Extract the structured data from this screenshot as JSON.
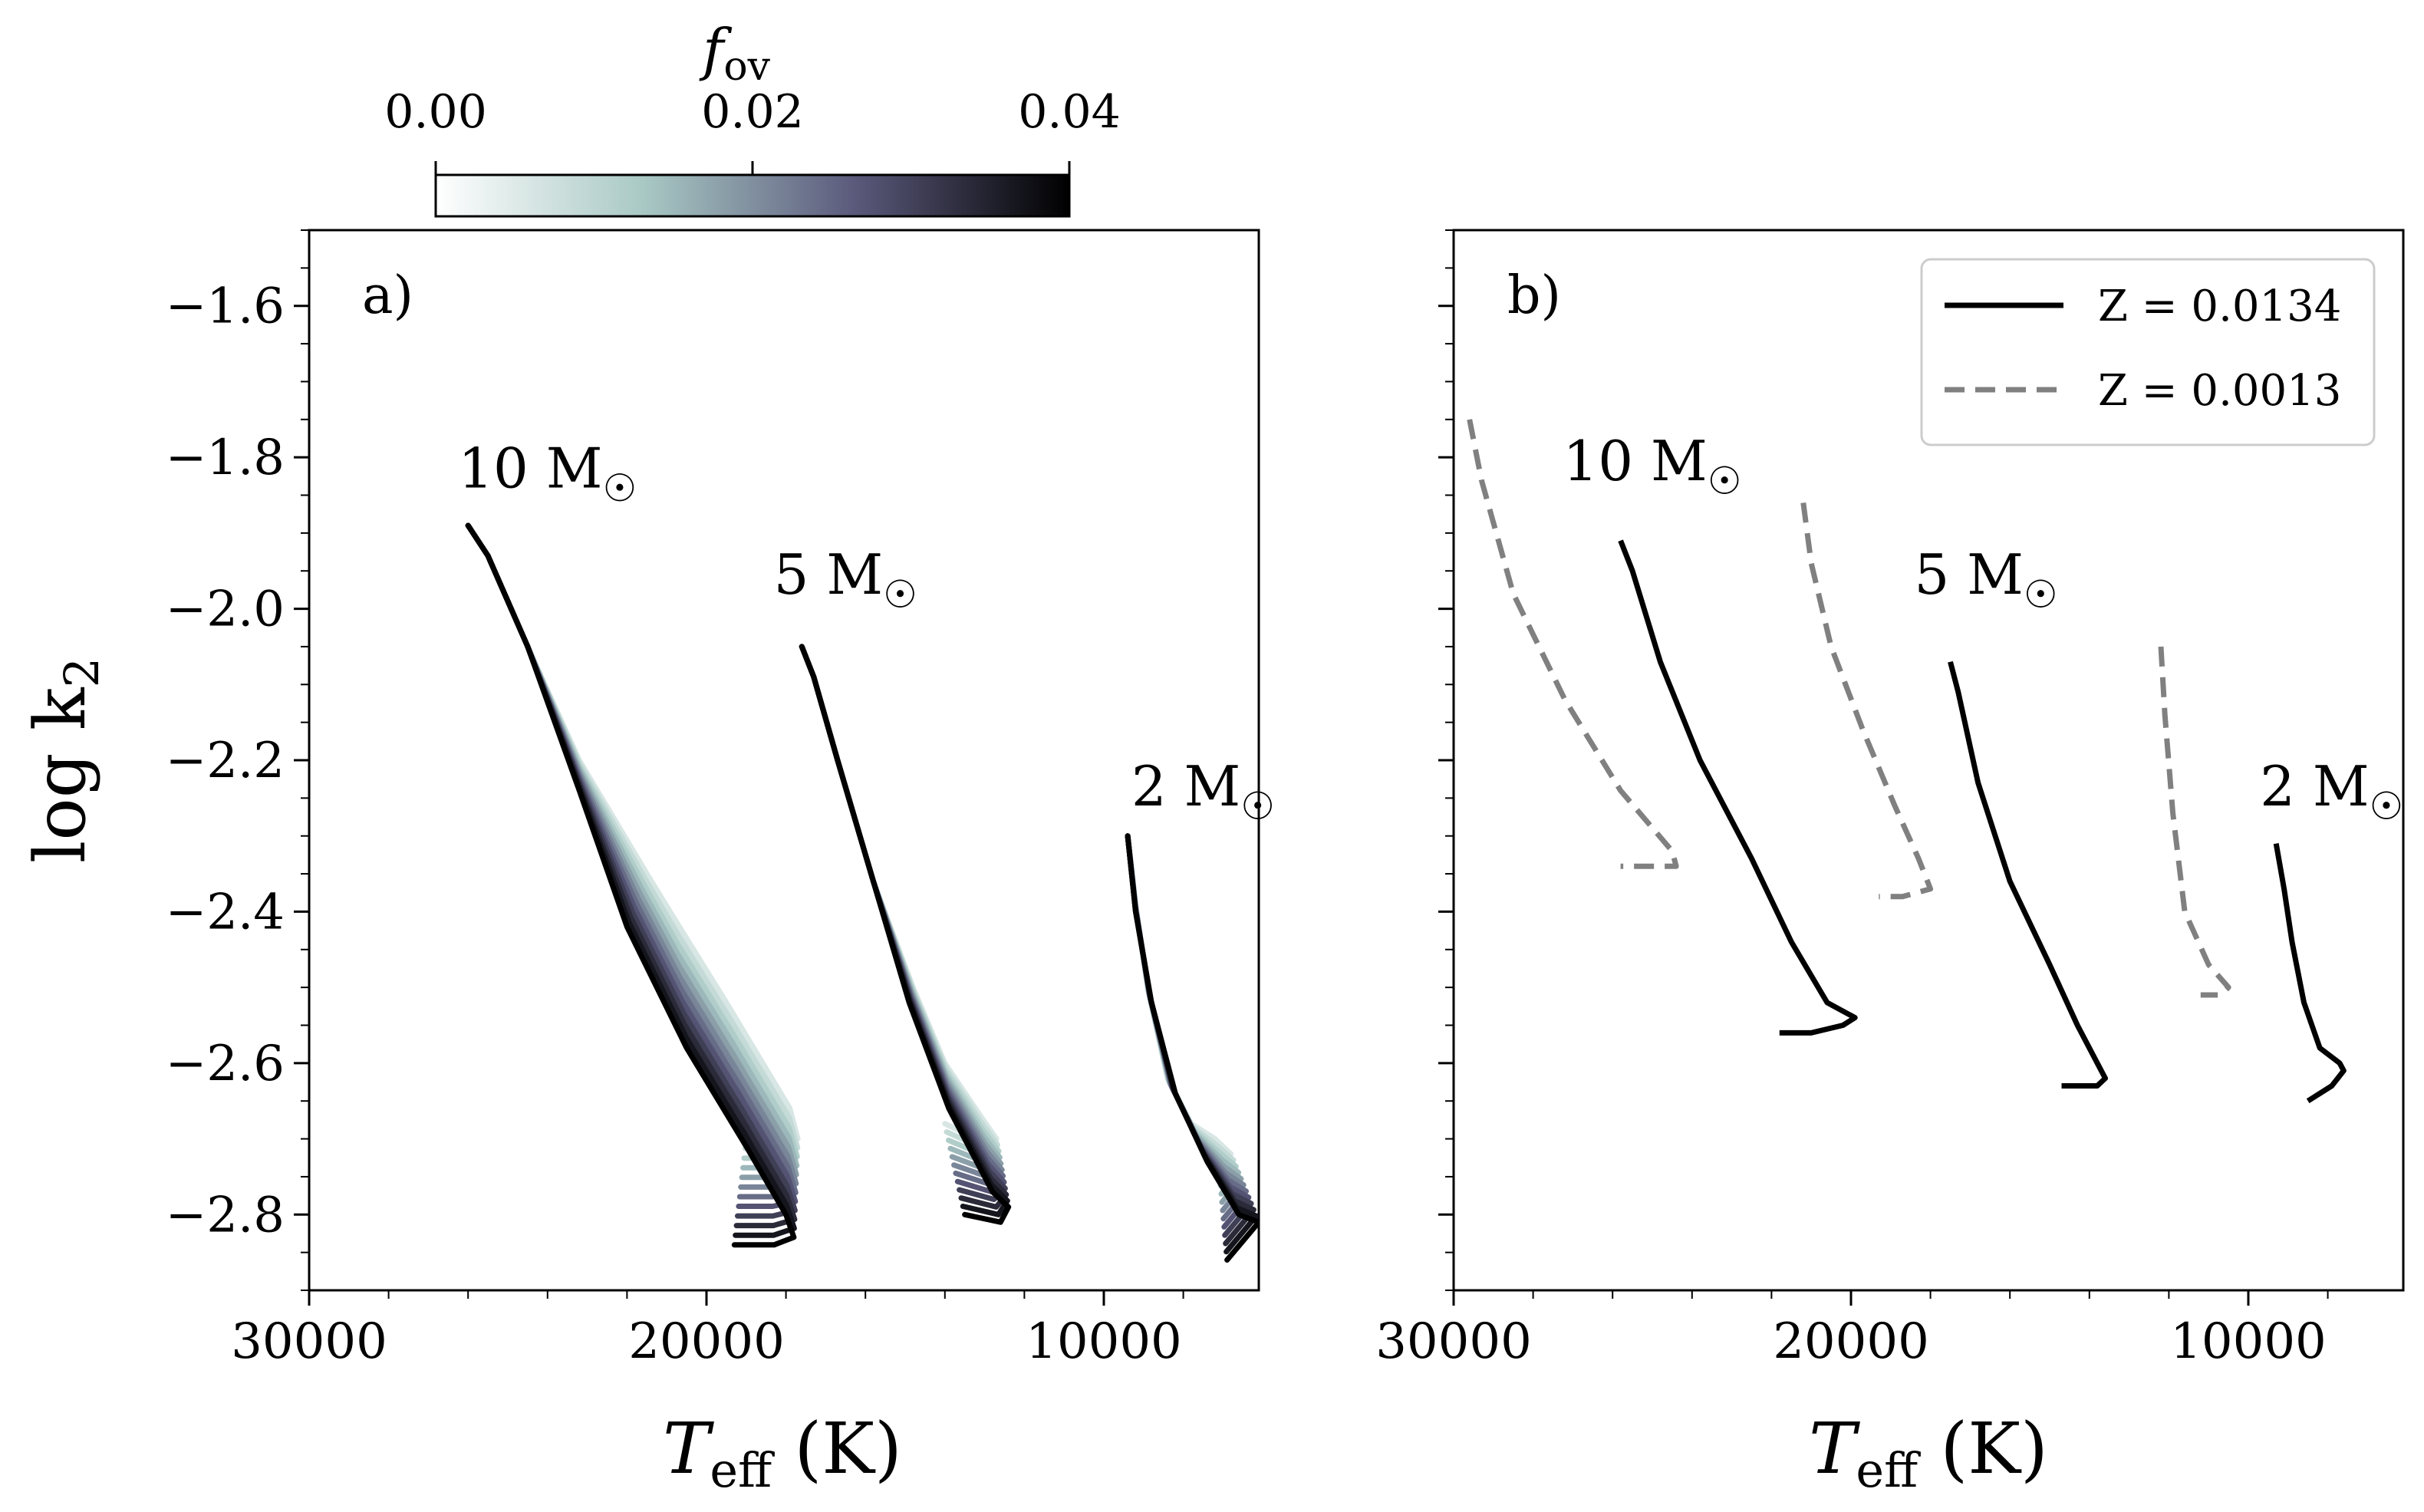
{
  "colorbar": {
    "label": "f",
    "label_sub": "ov",
    "ticks": [
      "0.00",
      "0.02",
      "0.04"
    ],
    "tick_values": [
      0.0,
      0.02,
      0.04
    ],
    "range": [
      0.0,
      0.04
    ],
    "colors": [
      "#ffffff",
      "#a8c8c4",
      "#5b5a7c",
      "#000000"
    ]
  },
  "x_axis": {
    "label": "T",
    "label_sub": "eff",
    "label_unit": " (K)",
    "ticks": [
      "30000",
      "20000",
      "10000"
    ],
    "tick_values": [
      30000,
      20000,
      10000
    ],
    "range": [
      30000,
      6100
    ],
    "inverted": true
  },
  "y_axis": {
    "label": "log k",
    "label_sub": "2",
    "ticks": [
      "−1.6",
      "−1.8",
      "−2.0",
      "−2.2",
      "−2.4",
      "−2.6",
      "−2.8"
    ],
    "tick_values": [
      -1.6,
      -1.8,
      -2.0,
      -2.2,
      -2.4,
      -2.6,
      -2.8
    ],
    "range": [
      -2.9,
      -1.5
    ]
  },
  "chart_data": [
    {
      "type": "line",
      "panel": "a)",
      "title": "",
      "xlabel": "Teff (K)",
      "ylabel": "log k2",
      "xlim": [
        30000,
        6100
      ],
      "ylim": [
        -2.9,
        -1.5
      ],
      "color_variable": "f_ov",
      "color_range": [
        0.0,
        0.04
      ],
      "num_tracks_per_mass": 12,
      "mass_labels": [
        "10 M",
        "5 M",
        "2 M"
      ],
      "series": [
        {
          "name": "10 M",
          "label_anchor": {
            "x": 24000,
            "y": -1.84
          },
          "x_fov0": [
            26000,
            25500,
            24500,
            23200,
            21500,
            20800,
            19500,
            17900,
            17700,
            18400,
            19000
          ],
          "y_fov0": [
            -1.89,
            -1.93,
            -2.05,
            -2.2,
            -2.35,
            -2.41,
            -2.52,
            -2.66,
            -2.7,
            -2.7,
            -2.7
          ],
          "x_fov4": [
            26000,
            25500,
            24500,
            23200,
            22000,
            20500,
            19000,
            18000,
            17800,
            18300,
            19300
          ],
          "y_fov4": [
            -1.89,
            -1.93,
            -2.05,
            -2.24,
            -2.42,
            -2.58,
            -2.71,
            -2.8,
            -2.83,
            -2.84,
            -2.84
          ]
        },
        {
          "name": "5 M",
          "label_anchor": {
            "x": 16500,
            "y": -1.98
          },
          "x_fov0": [
            17600,
            17300,
            16700,
            15800,
            14800,
            14000,
            13100,
            12700,
            13200,
            14000
          ],
          "y_fov0": [
            -2.05,
            -2.09,
            -2.2,
            -2.36,
            -2.5,
            -2.6,
            -2.67,
            -2.7,
            -2.7,
            -2.68
          ],
          "x_fov4": [
            17600,
            17300,
            16700,
            15800,
            14900,
            13900,
            12800,
            12400,
            12600,
            13500
          ],
          "y_fov4": [
            -2.05,
            -2.09,
            -2.2,
            -2.36,
            -2.52,
            -2.66,
            -2.77,
            -2.79,
            -2.81,
            -2.8
          ]
        },
        {
          "name": "2 M",
          "label_anchor": {
            "x": 7500,
            "y": -2.26
          },
          "x_fov0": [
            9400,
            9200,
            8900,
            8400,
            7800,
            7200,
            6800,
            7100
          ],
          "y_fov0": [
            -2.3,
            -2.39,
            -2.5,
            -2.62,
            -2.68,
            -2.7,
            -2.72,
            -2.74
          ],
          "x_fov4": [
            9400,
            9200,
            8800,
            8200,
            7400,
            6600,
            6100,
            6900
          ],
          "y_fov4": [
            -2.3,
            -2.4,
            -2.52,
            -2.64,
            -2.73,
            -2.8,
            -2.81,
            -2.86
          ]
        }
      ]
    },
    {
      "type": "line",
      "panel": "b)",
      "title": "",
      "xlabel": "Teff (K)",
      "ylabel": "",
      "xlim": [
        30000,
        6100
      ],
      "ylim": [
        -2.9,
        -1.5
      ],
      "legend": {
        "position": "top-right",
        "entries": [
          "Z = 0.0134",
          "Z = 0.0013"
        ]
      },
      "mass_labels": [
        "10 M",
        "5 M",
        "2 M"
      ],
      "series": [
        {
          "name": "10 M, Z = 0.0134",
          "style": "solid",
          "color": "#000000",
          "x": [
            25800,
            25500,
            24800,
            23800,
            22500,
            21500,
            20600,
            19900,
            20200,
            21000,
            21800
          ],
          "y": [
            -1.91,
            -1.95,
            -2.07,
            -2.2,
            -2.33,
            -2.44,
            -2.52,
            -2.54,
            -2.55,
            -2.56,
            -2.56
          ]
        },
        {
          "name": "10 M, Z = 0.0013",
          "style": "dashed",
          "color": "#808080",
          "x": [
            29600,
            29300,
            28500,
            27200,
            25800,
            24500,
            24400,
            25100,
            25800
          ],
          "y": [
            -1.75,
            -1.83,
            -1.98,
            -2.12,
            -2.24,
            -2.32,
            -2.34,
            -2.34,
            -2.34
          ]
        },
        {
          "name": "5 M, Z = 0.0134",
          "style": "solid",
          "color": "#000000",
          "x": [
            17500,
            17300,
            16800,
            16000,
            15000,
            14300,
            13800,
            13600,
            13800,
            14700
          ],
          "y": [
            -2.07,
            -2.11,
            -2.23,
            -2.36,
            -2.47,
            -2.55,
            -2.6,
            -2.62,
            -2.63,
            -2.63
          ]
        },
        {
          "name": "5 M, Z = 0.0013",
          "style": "dashed",
          "color": "#808080",
          "x": [
            21200,
            21000,
            20500,
            19700,
            18900,
            18300,
            18000,
            18700,
            19300
          ],
          "y": [
            -1.86,
            -1.94,
            -2.05,
            -2.16,
            -2.26,
            -2.33,
            -2.37,
            -2.38,
            -2.38
          ]
        },
        {
          "name": "2 M, Z = 0.0134",
          "style": "solid",
          "color": "#000000",
          "x": [
            9300,
            9100,
            8900,
            8600,
            8200,
            7700,
            7600,
            7900,
            8500
          ],
          "y": [
            -2.31,
            -2.37,
            -2.44,
            -2.52,
            -2.58,
            -2.6,
            -2.61,
            -2.63,
            -2.65
          ]
        },
        {
          "name": "2 M, Z = 0.0013",
          "style": "dashed",
          "color": "#808080",
          "x": [
            12200,
            12100,
            11900,
            11600,
            11000,
            10500,
            10700,
            11200
          ],
          "y": [
            -2.05,
            -2.14,
            -2.27,
            -2.4,
            -2.47,
            -2.5,
            -2.51,
            -2.51
          ]
        }
      ]
    }
  ]
}
